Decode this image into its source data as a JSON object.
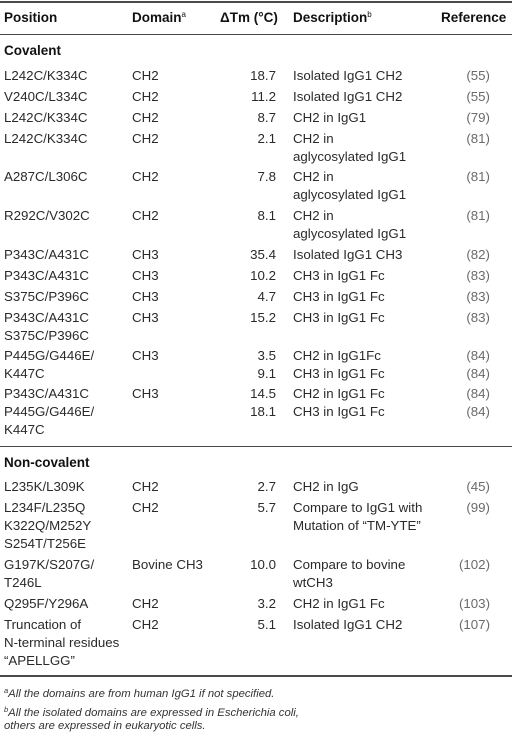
{
  "headers": {
    "position": "Position",
    "domain": "Domain",
    "domain_sup": "a",
    "dtm": "ΔTm (°C)",
    "description": "Description",
    "description_sup": "b",
    "reference": "Reference"
  },
  "sections": [
    {
      "title": "Covalent",
      "rows": [
        {
          "position": "L242C/K334C",
          "domain": "CH2",
          "dtm": "18.7",
          "description": "Isolated IgG1 CH2",
          "reference": "(55)"
        },
        {
          "position": "V240C/L334C",
          "domain": "CH2",
          "dtm": "11.2",
          "description": "Isolated IgG1 CH2",
          "reference": "(55)"
        },
        {
          "position": "L242C/K334C",
          "domain": "CH2",
          "dtm": "8.7",
          "description": "CH2 in IgG1",
          "reference": "(79)"
        },
        {
          "position": "L242C/K334C",
          "domain": "CH2",
          "dtm": "2.1",
          "description": "CH2 in\naglycosylated IgG1",
          "reference": "(81)"
        },
        {
          "position": "A287C/L306C",
          "domain": "CH2",
          "dtm": "7.8",
          "description": "CH2 in\naglycosylated IgG1",
          "reference": "(81)"
        },
        {
          "position": "R292C/V302C",
          "domain": "CH2",
          "dtm": "8.1",
          "description": "CH2 in\naglycosylated IgG1",
          "reference": "(81)"
        },
        {
          "position": "P343C/A431C",
          "domain": "CH3",
          "dtm": "35.4",
          "description": "Isolated IgG1 CH3",
          "reference": "(82)"
        },
        {
          "position": "P343C/A431C",
          "domain": "CH3",
          "dtm": "10.2",
          "description": "CH3 in IgG1 Fc",
          "reference": "(83)"
        },
        {
          "position": "S375C/P396C",
          "domain": "CH3",
          "dtm": "4.7",
          "description": "CH3 in IgG1 Fc",
          "reference": "(83)"
        },
        {
          "position": "P343C/A431C\nS375C/P396C",
          "domain": "CH3",
          "dtm": "15.2",
          "description": "CH3 in IgG1 Fc",
          "reference": "(83)"
        },
        {
          "position": "P445G/G446E/\nK447C",
          "domain": "CH3",
          "dtm": "3.5\n9.1",
          "description": "CH2 in IgG1Fc\nCH3 in IgG1 Fc",
          "reference": "(84)\n(84)"
        },
        {
          "position": "P343C/A431C\nP445G/G446E/\nK447C",
          "domain": "CH3",
          "dtm": "14.5\n18.1",
          "description": "CH2 in IgG1 Fc\nCH3 in IgG1 Fc",
          "reference": "(84)\n(84)"
        }
      ]
    },
    {
      "title": "Non-covalent",
      "rows": [
        {
          "position": "L235K/L309K",
          "domain": "CH2",
          "dtm": "2.7",
          "description": "CH2 in IgG",
          "reference": "(45)"
        },
        {
          "position": "L234F/L235Q\nK322Q/M252Y\nS254T/T256E",
          "domain": "CH2",
          "dtm": "5.7",
          "description": "Compare to IgG1 with\nMutation of “TM-YTE”",
          "reference": "(99)"
        },
        {
          "position": "G197K/S207G/\nT246L",
          "domain": "Bovine CH3",
          "dtm": "10.0",
          "description": "Compare to bovine\nwtCH3",
          "reference": "(102)"
        },
        {
          "position": "Q295F/Y296A",
          "domain": "CH2",
          "dtm": "3.2",
          "description": "CH2 in IgG1 Fc",
          "reference": "(103)"
        },
        {
          "position": "Truncation of\nN-terminal residues\n“APELLGG”",
          "domain": "CH2",
          "dtm": "5.1",
          "description": "Isolated IgG1 CH2",
          "reference": "(107)"
        }
      ]
    }
  ],
  "footnotes": [
    {
      "mark": "a",
      "text": "All the domains are from human IgG1 if not specified."
    },
    {
      "mark": "b",
      "text": "All the isolated domains are expressed in Escherichia coli,"
    },
    {
      "mark": "",
      "text": "others are expressed in eukaryotic cells."
    }
  ]
}
